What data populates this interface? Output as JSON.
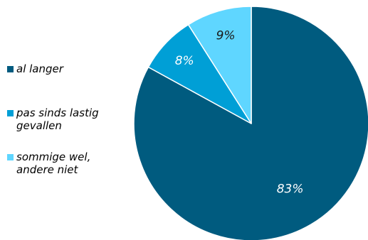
{
  "chart_data": {
    "type": "pie",
    "start_angle_deg": 0,
    "direction": "clockwise",
    "legend_position": "left",
    "slices": [
      {
        "label": "al langer",
        "value": 83,
        "display": "83%",
        "color": "#005b7f",
        "label_color": "#ffffff"
      },
      {
        "label": "pas sinds lastig gevallen",
        "value": 8,
        "display": "8%",
        "color": "#009fd6",
        "label_color": "#ffffff"
      },
      {
        "label": "sommige wel, andere  niet",
        "value": 9,
        "display": "9%",
        "color": "#5fd6ff",
        "label_color": "#1a1a1a"
      }
    ]
  },
  "legend": {
    "items": [
      {
        "text": "al langer",
        "color": "#005b7f"
      },
      {
        "text": "pas sinds lastig\ngevallen",
        "color": "#009fd6"
      },
      {
        "text": "sommige wel,\nandere  niet",
        "color": "#5fd6ff"
      }
    ]
  }
}
